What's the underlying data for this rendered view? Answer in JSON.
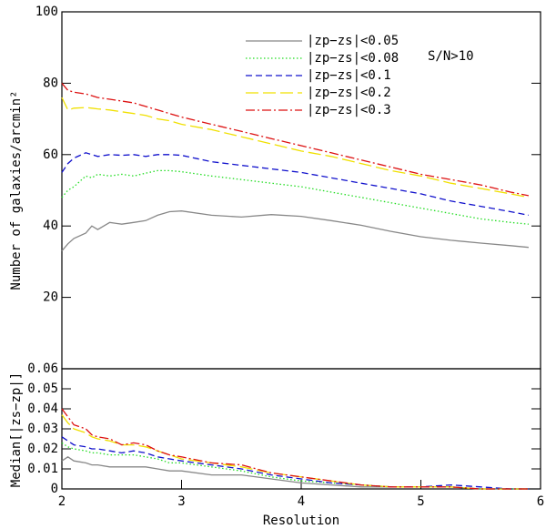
{
  "chart_data": [
    {
      "type": "line",
      "ylabel": "Number of galaxies/arcmin²",
      "annotation": "S/N>10",
      "legend": "upper center",
      "x": [
        2.0,
        2.05,
        2.1,
        2.2,
        2.25,
        2.3,
        2.4,
        2.5,
        2.6,
        2.7,
        2.8,
        2.9,
        3.0,
        3.25,
        3.5,
        3.75,
        4.0,
        4.25,
        4.5,
        4.75,
        5.0,
        5.25,
        5.5,
        5.75,
        5.9
      ],
      "xlim": [
        2,
        6
      ],
      "ylim": [
        0,
        100
      ],
      "yticks": [
        20,
        40,
        60,
        80,
        100
      ],
      "series": [
        {
          "name": "|zp−zs|<0.05",
          "color": "#888888",
          "linestyle": "solid",
          "values": [
            33,
            35,
            36.5,
            38,
            40,
            39,
            41,
            40.5,
            41,
            41.5,
            43,
            44,
            44.2,
            43,
            42.5,
            43.2,
            42.7,
            41.5,
            40.2,
            38.5,
            37,
            36,
            35.2,
            34.5,
            34
          ]
        },
        {
          "name": "|zp−zs|<0.08",
          "color": "#22dd22",
          "linestyle": "dotted",
          "values": [
            48,
            50,
            51,
            54,
            53.5,
            54.5,
            54,
            54.5,
            54,
            54.8,
            55.5,
            55.5,
            55.2,
            54,
            53,
            52,
            51,
            49.5,
            48,
            46.5,
            45,
            43.5,
            42,
            41,
            40.5
          ]
        },
        {
          "name": "|zp−zs|<0.1",
          "color": "#1111cc",
          "linestyle": "dashed",
          "values": [
            55,
            57.5,
            59,
            60.5,
            60,
            59.5,
            60,
            59.8,
            60,
            59.5,
            60,
            60,
            59.8,
            58,
            57,
            56,
            55,
            53.5,
            52,
            50.5,
            49,
            47,
            45.5,
            44,
            43
          ]
        },
        {
          "name": "|zp−zs|<0.2",
          "color": "#f0e000",
          "linestyle": "longdash",
          "values": [
            76,
            72.5,
            73,
            73.2,
            73,
            72.8,
            72.5,
            72,
            71.5,
            71,
            70,
            69.5,
            68.5,
            67,
            65,
            63,
            61,
            59.5,
            57.5,
            55.5,
            54,
            52,
            50.5,
            49,
            48
          ]
        },
        {
          "name": "|zp−zs|<0.3",
          "color": "#dd1111",
          "linestyle": "dashdot",
          "values": [
            80,
            78,
            77.5,
            77,
            76.5,
            76,
            75.5,
            75,
            74.5,
            73.5,
            72.5,
            71.5,
            70.5,
            68.5,
            66.5,
            64.5,
            62.5,
            60.5,
            58.5,
            56.5,
            54.5,
            53,
            51.5,
            49.5,
            48.5
          ]
        }
      ]
    },
    {
      "type": "line",
      "xlabel": "Resolution",
      "ylabel": "Median[|zs−zp|]",
      "x": [
        2.0,
        2.05,
        2.1,
        2.2,
        2.25,
        2.3,
        2.4,
        2.5,
        2.6,
        2.7,
        2.8,
        2.9,
        3.0,
        3.25,
        3.5,
        3.75,
        4.0,
        4.25,
        4.5,
        4.75,
        5.0,
        5.25,
        5.5,
        5.75,
        5.9
      ],
      "xlim": [
        2,
        6
      ],
      "xticks": [
        2,
        3,
        4,
        5,
        6
      ],
      "ylim": [
        0,
        0.06
      ],
      "yticks": [
        0,
        0.01,
        0.02,
        0.03,
        0.04,
        0.05,
        0.06
      ],
      "series": [
        {
          "color": "#888888",
          "linestyle": "solid",
          "values": [
            0.014,
            0.016,
            0.014,
            0.013,
            0.012,
            0.012,
            0.011,
            0.011,
            0.011,
            0.011,
            0.01,
            0.009,
            0.009,
            0.007,
            0.007,
            0.005,
            0.003,
            0.002,
            0.001,
            0.001,
            0.001,
            0.001,
            0,
            0,
            0
          ]
        },
        {
          "color": "#22dd22",
          "linestyle": "dotted",
          "values": [
            0.023,
            0.021,
            0.02,
            0.019,
            0.018,
            0.018,
            0.017,
            0.017,
            0.017,
            0.016,
            0.015,
            0.013,
            0.013,
            0.011,
            0.009,
            0.006,
            0.004,
            0.003,
            0.002,
            0.001,
            0.001,
            0.001,
            0,
            0,
            0
          ]
        },
        {
          "color": "#1111cc",
          "linestyle": "dashed",
          "values": [
            0.026,
            0.024,
            0.022,
            0.021,
            0.02,
            0.02,
            0.019,
            0.018,
            0.019,
            0.018,
            0.016,
            0.015,
            0.014,
            0.012,
            0.01,
            0.007,
            0.005,
            0.003,
            0.002,
            0.001,
            0.001,
            0.002,
            0.001,
            0,
            0
          ]
        },
        {
          "color": "#f0e000",
          "linestyle": "longdash",
          "values": [
            0.037,
            0.033,
            0.03,
            0.028,
            0.026,
            0.025,
            0.024,
            0.022,
            0.022,
            0.021,
            0.019,
            0.017,
            0.015,
            0.013,
            0.011,
            0.008,
            0.006,
            0.004,
            0.002,
            0.001,
            0.001,
            0.001,
            0,
            0,
            0
          ]
        },
        {
          "color": "#dd1111",
          "linestyle": "dashdot",
          "values": [
            0.04,
            0.036,
            0.032,
            0.03,
            0.027,
            0.026,
            0.025,
            0.022,
            0.023,
            0.022,
            0.019,
            0.017,
            0.016,
            0.013,
            0.012,
            0.008,
            0.006,
            0.004,
            0.002,
            0.001,
            0.001,
            0.001,
            0,
            0,
            0
          ]
        }
      ]
    }
  ]
}
